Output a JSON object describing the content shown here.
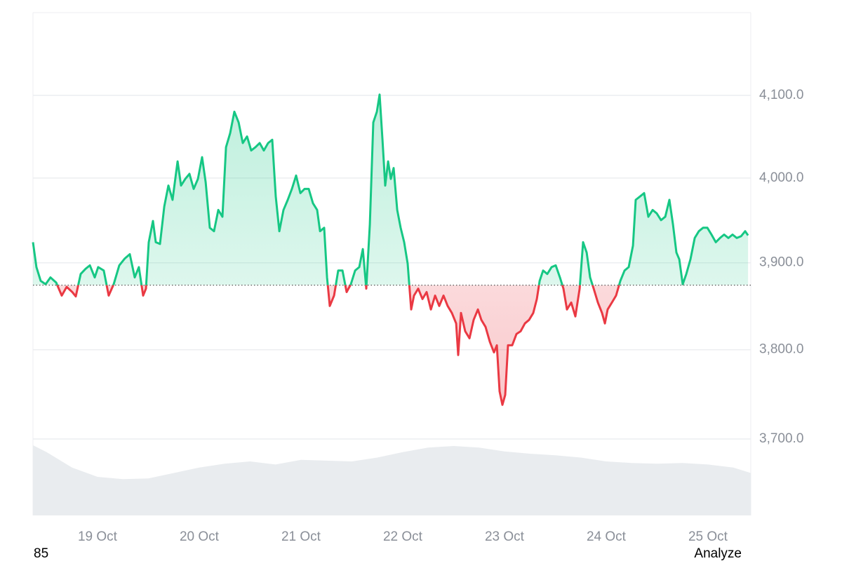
{
  "chart_data": {
    "type": "line",
    "x": [
      18.366,
      18.4,
      18.442,
      18.49,
      18.538,
      18.594,
      18.649,
      18.697,
      18.752,
      18.787,
      18.835,
      18.883,
      18.925,
      18.973,
      19.007,
      19.062,
      19.11,
      19.159,
      19.214,
      19.269,
      19.318,
      19.366,
      19.407,
      19.449,
      19.476,
      19.504,
      19.545,
      19.573,
      19.614,
      19.656,
      19.697,
      19.738,
      19.787,
      19.821,
      19.863,
      19.904,
      19.945,
      19.987,
      20.028,
      20.063,
      20.104,
      20.145,
      20.187,
      20.228,
      20.263,
      20.304,
      20.345,
      20.387,
      20.428,
      20.47,
      20.511,
      20.552,
      20.594,
      20.635,
      20.677,
      20.718,
      20.752,
      20.787,
      20.828,
      20.87,
      20.911,
      20.952,
      20.994,
      21.035,
      21.076,
      21.118,
      21.159,
      21.187,
      21.228,
      21.256,
      21.283,
      21.325,
      21.366,
      21.408,
      21.449,
      21.49,
      21.532,
      21.573,
      21.608,
      21.642,
      21.677,
      21.711,
      21.746,
      21.773,
      21.801,
      21.828,
      21.856,
      21.883,
      21.911,
      21.946,
      21.98,
      22.014,
      22.049,
      22.083,
      22.111,
      22.152,
      22.194,
      22.235,
      22.277,
      22.318,
      22.359,
      22.401,
      22.442,
      22.483,
      22.525,
      22.545,
      22.573,
      22.614,
      22.656,
      22.697,
      22.739,
      22.773,
      22.814,
      22.856,
      22.897,
      22.925,
      22.952,
      22.98,
      23.007,
      23.035,
      23.076,
      23.118,
      23.159,
      23.201,
      23.242,
      23.283,
      23.318,
      23.346,
      23.38,
      23.421,
      23.463,
      23.504,
      23.545,
      23.58,
      23.614,
      23.656,
      23.697,
      23.739,
      23.773,
      23.808,
      23.842,
      23.877,
      23.918,
      23.959,
      23.987,
      24.014,
      24.056,
      24.097,
      24.139,
      24.18,
      24.221,
      24.263,
      24.29,
      24.332,
      24.373,
      24.414,
      24.456,
      24.497,
      24.539,
      24.58,
      24.621,
      24.656,
      24.69,
      24.718,
      24.752,
      24.787,
      24.828,
      24.87,
      24.911,
      24.952,
      24.994,
      25.035,
      25.077,
      25.118,
      25.159,
      25.201,
      25.242,
      25.283,
      25.325,
      25.366,
      25.394
    ],
    "values": [
      3924,
      3895,
      3879,
      3875,
      3883,
      3877,
      3862,
      3872,
      3866,
      3861,
      3887,
      3893,
      3897,
      3883,
      3895,
      3891,
      3862,
      3875,
      3897,
      3905,
      3910,
      3883,
      3895,
      3862,
      3870,
      3924,
      3949,
      3924,
      3922,
      3966,
      3991,
      3974,
      4020,
      3991,
      3999,
      4005,
      3987,
      3999,
      4025,
      3995,
      3941,
      3937,
      3962,
      3954,
      4037,
      4054,
      4080,
      4067,
      4042,
      4050,
      4033,
      4037,
      4042,
      4033,
      4042,
      4046,
      3978,
      3937,
      3962,
      3974,
      3987,
      4003,
      3982,
      3987,
      3987,
      3970,
      3962,
      3937,
      3941,
      3883,
      3850,
      3862,
      3891,
      3891,
      3866,
      3875,
      3891,
      3895,
      3916,
      3870,
      3945,
      4067,
      4080,
      4101,
      4046,
      3991,
      4020,
      3999,
      4012,
      3962,
      3941,
      3924,
      3899,
      3846,
      3862,
      3870,
      3858,
      3866,
      3846,
      3862,
      3850,
      3862,
      3850,
      3842,
      3830,
      3794,
      3842,
      3821,
      3813,
      3834,
      3846,
      3834,
      3826,
      3809,
      3797,
      3805,
      3753,
      3738,
      3749,
      3805,
      3805,
      3818,
      3821,
      3830,
      3834,
      3842,
      3858,
      3879,
      3891,
      3887,
      3895,
      3897,
      3883,
      3870,
      3846,
      3854,
      3838,
      3870,
      3924,
      3912,
      3883,
      3870,
      3854,
      3842,
      3830,
      3846,
      3854,
      3862,
      3879,
      3891,
      3895,
      3920,
      3974,
      3978,
      3982,
      3954,
      3962,
      3958,
      3950,
      3954,
      3974,
      3945,
      3912,
      3904,
      3875,
      3887,
      3904,
      3929,
      3937,
      3941,
      3941,
      3933,
      3924,
      3929,
      3933,
      3929,
      3933,
      3929,
      3931,
      3937,
      3932
    ],
    "baseline": 3874,
    "color_above": "#16c784",
    "color_below": "#ea3943",
    "log_scale": true,
    "grid": true,
    "xlim": [
      18.366,
      25.421
    ],
    "ylim": [
      3616.5,
      4202.6
    ],
    "xticks": [
      {
        "value": 19,
        "label": "19 Oct"
      },
      {
        "value": 20,
        "label": "20 Oct"
      },
      {
        "value": 21,
        "label": "21 Oct"
      },
      {
        "value": 22,
        "label": "22 Oct"
      },
      {
        "value": 23,
        "label": "23 Oct"
      },
      {
        "value": 24,
        "label": "24 Oct"
      },
      {
        "value": 25,
        "label": "25 Oct"
      }
    ],
    "yticks": [
      {
        "value": 3700,
        "label": "3,700.0"
      },
      {
        "value": 3800,
        "label": "3,800.0"
      },
      {
        "value": 3900,
        "label": "3,900.0"
      },
      {
        "value": 4000,
        "label": "4,000.0"
      },
      {
        "value": 4100,
        "label": "4,100.0"
      }
    ],
    "volume": {
      "color": "#e9ecef",
      "lim": [
        0,
        100
      ],
      "x": [
        18.366,
        18.5,
        18.75,
        19,
        19.25,
        19.5,
        19.75,
        20,
        20.25,
        20.5,
        20.75,
        21,
        21.25,
        21.5,
        21.75,
        22,
        22.25,
        22.5,
        22.75,
        23,
        23.25,
        23.5,
        23.75,
        24,
        24.25,
        24.5,
        24.75,
        25,
        25.25,
        25.421
      ],
      "values": [
        91,
        82,
        62,
        50,
        47,
        48,
        55,
        62,
        67,
        70,
        66,
        72,
        71,
        70,
        75,
        82,
        88,
        90,
        88,
        83,
        80,
        78,
        75,
        70,
        68,
        67,
        68,
        66,
        62,
        55
      ]
    }
  },
  "footer": {
    "left": "85",
    "right": "Analyze"
  }
}
